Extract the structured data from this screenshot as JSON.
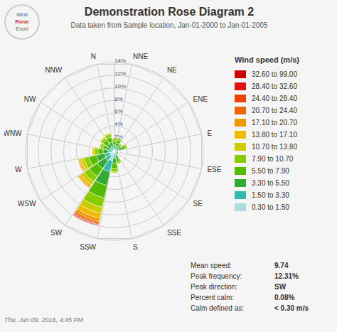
{
  "chart_data": {
    "type": "rose",
    "title": "Demonstration Rose Diagram 2",
    "subtitle": "Data taken from Sample location, Jan-01-2000 to Jan-01-2005",
    "timestamp": "Thu, Jun 09, 2016, 4:45 PM",
    "logo": [
      "Wind",
      "Rose",
      "Excel"
    ],
    "categories": [
      "N",
      "NNE",
      "NE",
      "ENE",
      "E",
      "ESE",
      "SE",
      "SSE",
      "S",
      "SSW",
      "SW",
      "WSW",
      "W",
      "WNW",
      "NW",
      "NNW"
    ],
    "legend_title": "Wind speed (m/s)",
    "legend": "right",
    "stacked": true,
    "grid": true,
    "series": [
      {
        "name": "32.60 to 99.00",
        "color": "#cc0000",
        "values": [
          0.0,
          0.0,
          0.0,
          0.0,
          0.0,
          0.0,
          0.0,
          0.0,
          0.0,
          0.0,
          0.1,
          0.0,
          0.0,
          0.0,
          0.0,
          0.0
        ]
      },
      {
        "name": "28.40 to 32.60",
        "color": "#dd1111",
        "values": [
          0.0,
          0.0,
          0.0,
          0.0,
          0.0,
          0.0,
          0.0,
          0.0,
          0.0,
          0.0,
          0.1,
          0.0,
          0.0,
          0.0,
          0.0,
          0.0
        ]
      },
      {
        "name": "24.40 to 28.40",
        "color": "#ee4400",
        "values": [
          0.0,
          0.0,
          0.0,
          0.0,
          0.0,
          0.0,
          0.0,
          0.0,
          0.0,
          0.0,
          0.2,
          0.0,
          0.0,
          0.0,
          0.0,
          0.0
        ]
      },
      {
        "name": "20.70 to 24.40",
        "color": "#ee6600",
        "values": [
          0.0,
          0.0,
          0.0,
          0.0,
          0.0,
          0.0,
          0.0,
          0.0,
          0.0,
          0.0,
          0.3,
          0.1,
          0.1,
          0.0,
          0.0,
          0.0
        ]
      },
      {
        "name": "17.10 to 20.70",
        "color": "#ee9900",
        "values": [
          0.05,
          0.0,
          0.0,
          0.0,
          0.0,
          0.0,
          0.0,
          0.0,
          0.0,
          0.05,
          0.5,
          0.2,
          0.2,
          0.1,
          0.0,
          0.0
        ]
      },
      {
        "name": "13.80 to 17.10",
        "color": "#eebb00",
        "values": [
          0.1,
          0.1,
          0.0,
          0.0,
          0.0,
          0.0,
          0.0,
          0.0,
          0.1,
          0.1,
          0.8,
          0.4,
          0.3,
          0.2,
          0.1,
          0.1
        ]
      },
      {
        "name": "10.70 to 13.80",
        "color": "#cccc00",
        "values": [
          0.2,
          0.1,
          0.1,
          0.1,
          0.1,
          0.0,
          0.0,
          0.0,
          0.1,
          0.2,
          1.0,
          0.6,
          0.5,
          0.3,
          0.2,
          0.2
        ]
      },
      {
        "name": "7.90 to 10.70",
        "color": "#88cc00",
        "values": [
          0.5,
          0.4,
          0.3,
          0.2,
          0.3,
          0.1,
          0.1,
          0.1,
          0.3,
          0.5,
          1.5,
          1.0,
          0.8,
          0.5,
          0.4,
          0.4
        ]
      },
      {
        "name": "5.50 to 7.90",
        "color": "#55bb00",
        "values": [
          0.8,
          0.6,
          0.5,
          0.4,
          0.5,
          0.2,
          0.2,
          0.2,
          0.5,
          0.8,
          2.0,
          1.5,
          1.2,
          0.8,
          0.6,
          0.7
        ]
      },
      {
        "name": "3.30 to 5.50",
        "color": "#33aa33",
        "values": [
          0.7,
          0.5,
          0.6,
          0.4,
          0.6,
          0.2,
          0.2,
          0.2,
          0.5,
          0.9,
          2.2,
          1.5,
          1.3,
          0.8,
          0.6,
          0.7
        ]
      },
      {
        "name": "1.50 to 3.30",
        "color": "#33bbaa",
        "values": [
          0.5,
          0.3,
          0.5,
          0.3,
          0.4,
          0.1,
          0.2,
          0.2,
          0.4,
          0.6,
          1.8,
          1.0,
          0.9,
          0.6,
          0.4,
          0.5
        ]
      },
      {
        "name": "0.30 to 1.50",
        "color": "#aadddd",
        "values": [
          0.3,
          0.2,
          0.3,
          0.2,
          0.3,
          0.1,
          0.1,
          0.1,
          0.3,
          0.4,
          1.5,
          0.8,
          0.7,
          0.4,
          0.3,
          0.3
        ]
      }
    ],
    "ylim": [
      0,
      14
    ],
    "yticks": [
      {
        "value": 2,
        "label": "2%"
      },
      {
        "value": 4,
        "label": "4%"
      },
      {
        "value": 6,
        "label": "6%"
      },
      {
        "value": 8,
        "label": "8%"
      },
      {
        "value": 10,
        "label": "10%"
      },
      {
        "value": 12,
        "label": "12%"
      },
      {
        "value": 14,
        "label": "14%"
      }
    ],
    "stats": [
      {
        "label": "Mean speed:",
        "value": "9.74"
      },
      {
        "label": "Peak frequency:",
        "value": "12.31%"
      },
      {
        "label": "Peak direction:",
        "value": "SW"
      },
      {
        "label": "Percent calm:",
        "value": "0.08%"
      },
      {
        "label": "Calm defined as:",
        "value": "< 0.30 m/s"
      }
    ]
  }
}
